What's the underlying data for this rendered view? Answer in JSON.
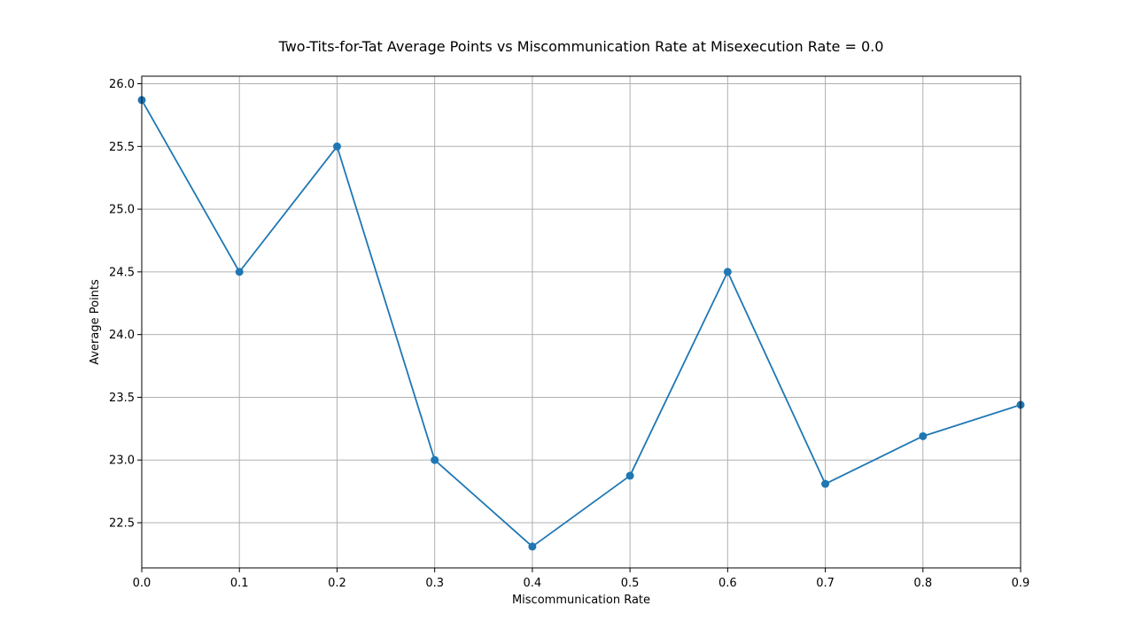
{
  "chart_data": {
    "type": "line",
    "title": "Two-Tits-for-Tat Average Points vs Miscommunication Rate at Misexecution Rate = 0.0",
    "xlabel": "Miscommunication Rate",
    "ylabel": "Average Points",
    "xlim": [
      0.0,
      0.9
    ],
    "ylim": [
      22.14,
      26.06
    ],
    "xticks": [
      0.0,
      0.1,
      0.2,
      0.3,
      0.4,
      0.5,
      0.6,
      0.7,
      0.8,
      0.9
    ],
    "xtick_labels": [
      "0.0",
      "0.1",
      "0.2",
      "0.3",
      "0.4",
      "0.5",
      "0.6",
      "0.7",
      "0.8",
      "0.9"
    ],
    "yticks": [
      22.5,
      23.0,
      23.5,
      24.0,
      24.5,
      25.0,
      25.5,
      26.0
    ],
    "ytick_labels": [
      "22.5",
      "23.0",
      "23.5",
      "24.0",
      "24.5",
      "25.0",
      "25.5",
      "26.0"
    ],
    "grid": true,
    "legend": false,
    "series": [
      {
        "color": "#1f77b4",
        "marker": "circle",
        "x": [
          0.0,
          0.1,
          0.2,
          0.3,
          0.4,
          0.5,
          0.6,
          0.7,
          0.8,
          0.9
        ],
        "values": [
          25.87,
          24.5,
          25.5,
          23.0,
          22.31,
          22.875,
          24.5,
          22.81,
          23.19,
          23.44
        ]
      }
    ]
  }
}
